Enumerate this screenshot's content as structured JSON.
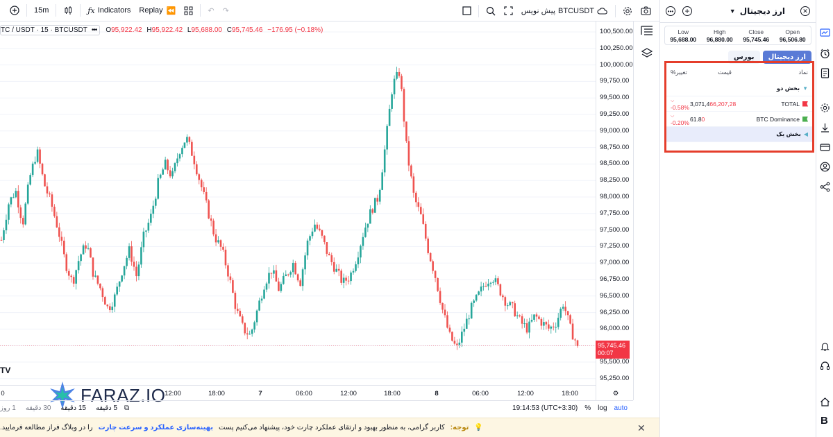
{
  "toolbar": {
    "interval": "15m",
    "indicators_label": "Indicators",
    "replay_label": "Replay",
    "symbol_label": "BTCUSDT",
    "publish_label": "پیش نویس"
  },
  "legend": {
    "symbol": "TC / USDT · 15 · BTCUSDT",
    "more": "•••",
    "o_label": "O",
    "o_value": "95,922.42",
    "h_label": "H",
    "h_value": "95,922.42",
    "l_label": "L",
    "l_value": "95,688.00",
    "c_label": "C",
    "c_value": "95,745.46",
    "change": "−176.95 (−0.18%)"
  },
  "price_axis": {
    "ticks": [
      "100,500.00",
      "100,250.00",
      "100,000.00",
      "99,750.00",
      "99,500.00",
      "99,250.00",
      "99,000.00",
      "98,750.00",
      "98,500.00",
      "98,250.00",
      "98,000.00",
      "97,750.00",
      "97,500.00",
      "97,250.00",
      "97,000.00",
      "96,750.00",
      "96,500.00",
      "96,250.00",
      "96,000.00",
      "95,750.00",
      "95,500.00",
      "95,250.00"
    ],
    "last_price": "95,745.46",
    "countdown": "00:07"
  },
  "time_axis": {
    "ticks": [
      {
        "label": "0",
        "bold": false
      },
      {
        "label": "12:00",
        "bold": false
      },
      {
        "label": "18:00",
        "bold": false
      },
      {
        "label": "7",
        "bold": true
      },
      {
        "label": "06:00",
        "bold": false
      },
      {
        "label": "12:00",
        "bold": false
      },
      {
        "label": "18:00",
        "bold": false
      },
      {
        "label": "8",
        "bold": true
      },
      {
        "label": "06:00",
        "bold": false
      },
      {
        "label": "12:00",
        "bold": false
      },
      {
        "label": "18:00",
        "bold": false
      }
    ]
  },
  "bottom_bar": {
    "ranges": [
      "5 دقیقه",
      "15 دقیقه",
      "30 دقیقه",
      "1 روز"
    ],
    "clock": "19:14:53 (UTC+3:30)",
    "percent": "%",
    "log": "log",
    "auto": "auto"
  },
  "watermark": {
    "text": "FARAZ.IO"
  },
  "notice": {
    "prefix": "توجه:",
    "text": "کاربر گرامی، به منظور بهبود و ارتقای عملکرد چارت خود، پیشنهاد می‌کنیم پست",
    "link": "بهینه‌سازی عملکرد و سرعت چارت",
    "suffix": "را در وبلاگ فراز مطالعه فرمایید."
  },
  "panel": {
    "title": "ارز دیجیتال",
    "ohlc": [
      {
        "label": "Low",
        "value": "95,688.00"
      },
      {
        "label": "High",
        "value": "96,880.00"
      },
      {
        "label": "Close",
        "value": "95,745.46"
      },
      {
        "label": "Open",
        "value": "96,506.80"
      }
    ],
    "tabs": [
      {
        "label": "ارز دیجیتال",
        "active": true
      },
      {
        "label": "بورس",
        "active": false
      }
    ],
    "columns": {
      "symbol": "نماد",
      "price": "قیمت",
      "change": "تغییر%"
    },
    "rows": [
      {
        "type": "section",
        "label": "بخش دو"
      },
      {
        "type": "item",
        "symbol": "TOTAL",
        "flag": "#f23645",
        "price_a": "3,071,4",
        "price_b": "66,207,28",
        "change": "-0.58%"
      },
      {
        "type": "item",
        "symbol": "BTC Dominance",
        "flag": "#4caf50",
        "price_a": "61.8",
        "price_b": "0",
        "change": "-0.20%"
      },
      {
        "type": "section",
        "label": "بخش یک"
      }
    ]
  },
  "chart_data": {
    "type": "candlestick",
    "ylim": [
      95200,
      100600
    ],
    "last": 95745.46,
    "up_color": "#26a69a",
    "down_color": "#ef5350",
    "path": [
      97350,
      97900,
      98100,
      97600,
      98300,
      98700,
      98200,
      97900,
      97500,
      97000,
      96700,
      97100,
      97300,
      96800,
      96600,
      96300,
      96500,
      96900,
      97200,
      96800,
      97400,
      97700,
      98200,
      98500,
      98300,
      98700,
      98900,
      98600,
      98200,
      97800,
      97400,
      97200,
      96800,
      96300,
      96000,
      95900,
      96300,
      96700,
      96900,
      96600,
      96800,
      97000,
      96700,
      97300,
      97600,
      97400,
      97100,
      96900,
      96700,
      96800,
      97100,
      97500,
      97800,
      98000,
      98800,
      99700,
      99900,
      98700,
      98000,
      97700,
      97200,
      96800,
      96300,
      95900,
      95700,
      96000,
      96300,
      96500,
      96700,
      96800,
      96600,
      96400,
      96300,
      96100,
      96000,
      96200,
      96100,
      96000,
      96100,
      96400,
      96000,
      95750
    ]
  }
}
